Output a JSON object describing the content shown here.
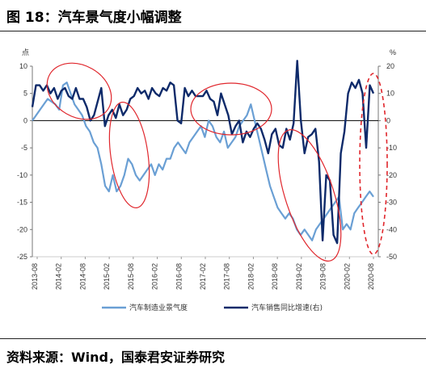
{
  "title": "图 18：汽车景气度小幅调整",
  "source": "资料来源：Wind，国泰君安证券研究",
  "colors": {
    "series1": "#6a9fd4",
    "series2": "#0e2a6a",
    "annotation": "#e0262c"
  },
  "chart_data": {
    "type": "line",
    "ylabel_left": "点",
    "ylabel_right": "%",
    "ylim_left": [
      -25,
      10
    ],
    "ylim_right": [
      -50,
      20
    ],
    "yticks_left": [
      "10",
      "5",
      "0",
      "-5",
      "-10",
      "-15",
      "-20",
      "-25"
    ],
    "yticks_right": [
      "20",
      "10",
      "0",
      "-10",
      "-20",
      "-30",
      "-40",
      "-50"
    ],
    "xticks": [
      "2013-08",
      "2014-02",
      "2014-08",
      "2015-02",
      "2015-08",
      "2016-02",
      "2016-08",
      "2017-02",
      "2017-08",
      "2018-02",
      "2018-08",
      "2019-02",
      "2019-08",
      "2020-02",
      "2020-08"
    ],
    "grid": false,
    "legend_position": "bottom",
    "series": [
      {
        "name": "汽车制造业景气度",
        "axis": "left",
        "values": [
          0,
          1,
          2,
          3,
          4,
          3.5,
          3,
          2,
          6.5,
          7,
          5,
          3,
          2,
          1,
          -1,
          -2,
          -4,
          -5,
          -8,
          -12,
          -13,
          -10,
          -13,
          -12,
          -10,
          -7,
          -8,
          -10,
          -11,
          -10,
          -9,
          -8,
          -10,
          -8,
          -9,
          -7,
          -7,
          -5,
          -4,
          -5,
          -6,
          -4,
          -3,
          -2,
          -1,
          -3,
          0,
          -1,
          -3,
          -4,
          -2,
          -5,
          -4,
          -3,
          -1,
          0,
          1,
          3,
          0,
          -3,
          -6,
          -9,
          -12,
          -14,
          -16,
          -17,
          -18,
          -17,
          -18,
          -20,
          -21,
          -20,
          -21,
          -22,
          -20,
          -19,
          -18,
          -17,
          -16,
          -15,
          -14,
          -20,
          -19,
          -20,
          -17,
          -16,
          -15,
          -14,
          -13,
          -14
        ],
        "x_start": "2013-08"
      },
      {
        "name": "汽车销售同比增速(右)",
        "axis": "right",
        "values": [
          5,
          13,
          13,
          11,
          13,
          10,
          12,
          8,
          11,
          12,
          9,
          8,
          12,
          8,
          8,
          5,
          0,
          2,
          7,
          12,
          -2,
          2,
          4,
          1,
          6,
          2,
          4,
          8,
          9,
          12,
          10,
          11,
          8,
          12,
          10,
          9,
          12,
          11,
          14,
          13,
          0,
          -1,
          12,
          9,
          11,
          9,
          9,
          9,
          11,
          8,
          7,
          2,
          10,
          6,
          2,
          -5,
          -2,
          0,
          -8,
          -4,
          -6,
          -3,
          -1,
          -3,
          -7,
          -12,
          -5,
          -3,
          -9,
          -10,
          -3,
          -7,
          -1,
          22,
          0,
          -12,
          -6,
          -5,
          -3,
          -15,
          -44,
          -20,
          -22,
          -42,
          -45,
          -12,
          -4,
          10,
          14,
          12,
          15,
          10,
          -10,
          13,
          10
        ],
        "x_start": "2013-08"
      }
    ]
  }
}
